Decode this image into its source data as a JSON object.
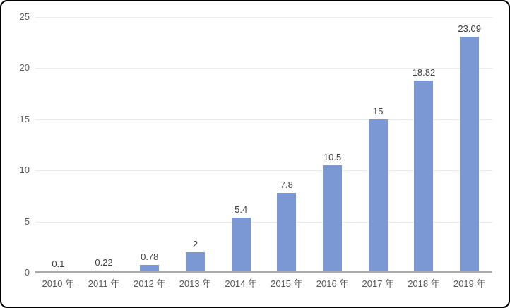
{
  "chart_data": {
    "type": "bar",
    "title": "",
    "xlabel": "",
    "ylabel": "",
    "categories": [
      "2010 年",
      "2011 年",
      "2012 年",
      "2013 年",
      "2014 年",
      "2015 年",
      "2016 年",
      "2017 年",
      "2018 年",
      "2019 年"
    ],
    "values": [
      0.1,
      0.22,
      0.78,
      2,
      5.4,
      7.8,
      10.5,
      15,
      18.82,
      23.09
    ],
    "value_labels": [
      "0.1",
      "0.22",
      "0.78",
      "2",
      "5.4",
      "7.8",
      "10.5",
      "15",
      "18.82",
      "23.09"
    ],
    "ylim": [
      0,
      25
    ],
    "y_ticks": [
      0,
      5,
      10,
      15,
      20,
      25
    ],
    "grid": true,
    "legend": false,
    "colors": {
      "bar": "#7b97d4",
      "gridline": "#eaeaea",
      "axis_line": "#a9a9a9",
      "tick_label": "#595959",
      "data_label": "#404040",
      "background": "#ffffff",
      "border": "#000000"
    }
  }
}
